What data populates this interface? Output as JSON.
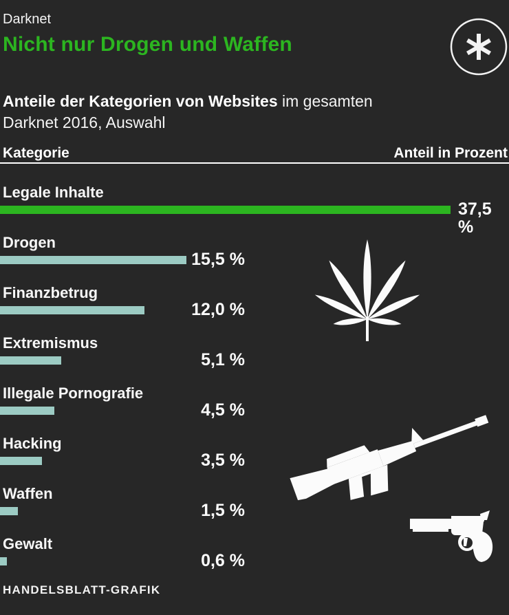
{
  "header": {
    "kicker": "Darknet",
    "title": "Nicht nur Drogen und Waffen"
  },
  "subtitle": {
    "bold": "Anteile der Kategorien von Websites",
    "rest_line1": " im gesamten",
    "line2": "Darknet 2016, Auswahl"
  },
  "table_header": {
    "category": "Kategorie",
    "share": "Anteil in Prozent"
  },
  "footer": {
    "credit": "HANDELSBLATT-GRAFIK"
  },
  "colors": {
    "background": "#272727",
    "accent_green": "#2cb520",
    "bar_teal": "#9ccbc3",
    "text": "#ffffff"
  },
  "icons": {
    "logo": "asterisk-logo-icon",
    "drugs": "cannabis-leaf-icon",
    "rifle": "rifle-icon",
    "revolver": "revolver-icon"
  },
  "chart_data": {
    "type": "bar",
    "orientation": "horizontal",
    "title": "Anteile der Kategorien von Websites im gesamten Darknet 2016, Auswahl",
    "xlabel": "Anteil in Prozent",
    "ylabel": "Kategorie",
    "categories": [
      "Legale Inhalte",
      "Drogen",
      "Finanzbetrug",
      "Extremismus",
      "Illegale Pornografie",
      "Hacking",
      "Waffen",
      "Gewalt"
    ],
    "values": [
      37.5,
      15.5,
      12.0,
      5.1,
      4.5,
      3.5,
      1.5,
      0.6
    ],
    "value_labels": [
      "37,5 %",
      "15,5 %",
      "12,0 %",
      "5,1 %",
      "4,5 %",
      "3,5 %",
      "1,5 %",
      "0,6 %"
    ],
    "unit": "Prozent",
    "xlim": [
      0,
      37.5
    ],
    "bar_colors": [
      "#2cb520",
      "#9ccbc3",
      "#9ccbc3",
      "#9ccbc3",
      "#9ccbc3",
      "#9ccbc3",
      "#9ccbc3",
      "#9ccbc3"
    ],
    "grid": false,
    "legend": false
  }
}
